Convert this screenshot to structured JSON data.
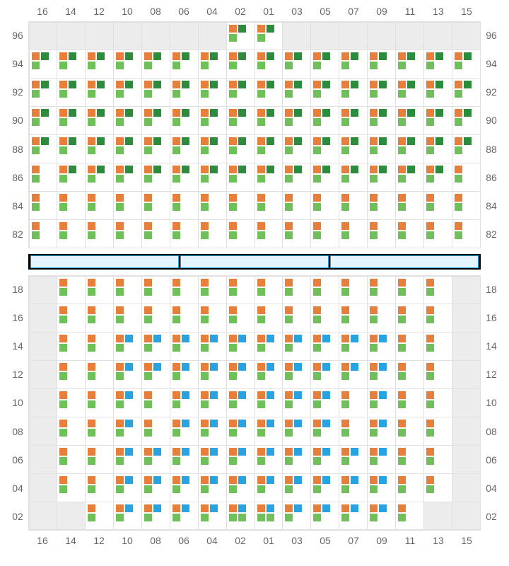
{
  "layout": {
    "columns": [
      "16",
      "14",
      "12",
      "10",
      "08",
      "06",
      "04",
      "02",
      "01",
      "03",
      "05",
      "07",
      "09",
      "11",
      "13",
      "15"
    ],
    "top_rows": [
      "96",
      "94",
      "92",
      "90",
      "88",
      "86",
      "84",
      "82"
    ],
    "bottom_rows": [
      "18",
      "16",
      "14",
      "12",
      "10",
      "08",
      "06",
      "04",
      "02"
    ]
  },
  "colors": {
    "orange": "#e67e3c",
    "green_light": "#6fbf5a",
    "green_dark": "#2e8b3d",
    "blue": "#29a3e0",
    "cell_bg": "#ffffff",
    "blank_bg": "#ececec",
    "grid_line": "#e0e0e0",
    "divider_bg": "#000000",
    "divider_bar_fill": "#e4f5ff",
    "divider_bar_border": "#29a3e0",
    "label_color": "#666666"
  },
  "glyph_legend": {
    "A": [
      "orange",
      "green_dark",
      "green_light",
      ""
    ],
    "B": [
      "orange",
      "",
      "green_light",
      ""
    ],
    "C": [
      "orange",
      "blue",
      "green_light",
      ""
    ],
    "D": [
      "orange",
      "blue",
      "green_light",
      "green_light"
    ],
    ".": null
  },
  "top_grid": [
    ".......AA.......",
    "AAAAAAAAAAAAAAAA",
    "AAAAAAAAAAAAAAAA",
    "AAAAAAAAAAAAAAAA",
    "AAAAAAAAAAAAAAAA",
    "BAAAAAAAAAAAAAAB",
    "BBBBBBBBBBBBBBBB",
    "BBBBBBBBBBBBBBBB"
  ],
  "bottom_grid": [
    ".BBBBBBBBBBBBBB.",
    ".BBBBBBBBBBBBBB.",
    ".BBCCCCCCCCCCBB.",
    ".BBCCCCCCCCCCBB.",
    ".BBCBCCCCCCBCBB.",
    ".BBCBCCCCCCBCBB.",
    ".BBCCCCCCCCCCBB.",
    ".BBCCCCCCCCCCBB.",
    "..BCCCCDDCCCCB.."
  ],
  "divider_bars": 3
}
